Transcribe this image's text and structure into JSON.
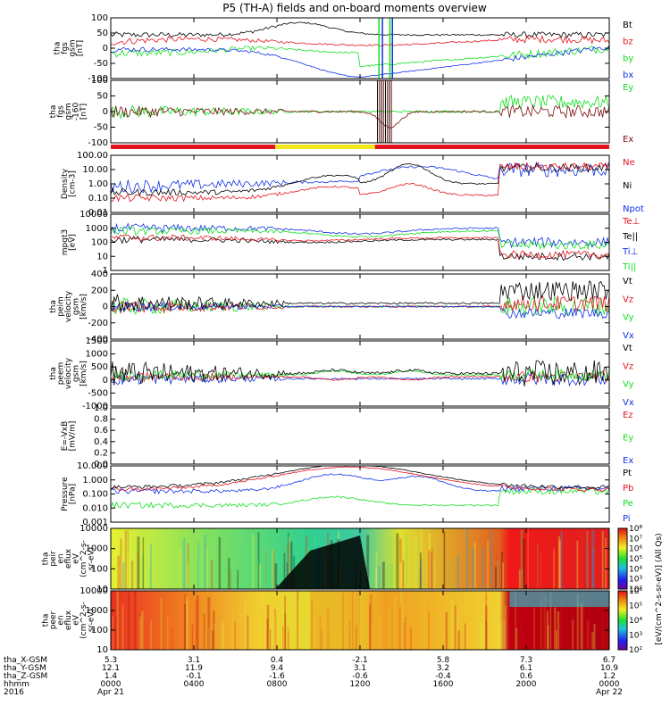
{
  "title": "P5 (TH-A) fields and on-board moments overview",
  "colors": {
    "black": "#000000",
    "red": "#e4141e",
    "green": "#10e01e",
    "blue": "#1030e6",
    "yellow": "#f2e81c",
    "brown": "#7a0f0f"
  },
  "chart_data": {
    "type": "line",
    "x_ticks": [
      "0000",
      "0400",
      "0800",
      "1200",
      "1600",
      "2000",
      "0000"
    ],
    "date_labels": [
      "Apr 21",
      "Apr 22"
    ],
    "year_label": "2016",
    "panels": [
      {
        "id": "fgs",
        "ylabel": [
          "tha",
          "fgs",
          "gsm",
          "[nT]"
        ],
        "ticks": [
          "100",
          "50",
          "0",
          "-50",
          "-100"
        ],
        "legend": [
          {
            "text": "Bt",
            "color": "black"
          },
          {
            "text": "bz",
            "color": "red"
          },
          {
            "text": "by",
            "color": "green"
          },
          {
            "text": "bx",
            "color": "blue"
          }
        ]
      },
      {
        "id": "efs",
        "ylabel": [
          "tha",
          "fgs",
          "gsm",
          "-160",
          "[nT]"
        ],
        "ticks": [
          "100",
          "50",
          "0",
          "-50",
          "-100"
        ],
        "legend": [
          {
            "text": "Ey",
            "color": "green"
          },
          {
            "text": "Ex",
            "color": "brown"
          }
        ]
      },
      {
        "id": "density",
        "ylabel": [
          "Density",
          "[cm-3]"
        ],
        "ticks": [
          "100.00",
          "10.00",
          "1.00",
          "0.10",
          "0.01"
        ],
        "legend": [
          {
            "text": "Ne",
            "color": "red"
          },
          {
            "text": "Ni",
            "color": "black"
          },
          {
            "text": "Npot",
            "color": "blue"
          }
        ]
      },
      {
        "id": "temp",
        "ylabel": [
          "mpgt3",
          "[eV]"
        ],
        "ticks": [
          "10000",
          "1000",
          "100",
          "10",
          "1"
        ],
        "legend": [
          {
            "text": "Te⊥",
            "color": "red"
          },
          {
            "text": "Te||",
            "color": "black"
          },
          {
            "text": "Ti⊥",
            "color": "blue"
          },
          {
            "text": "Ti||",
            "color": "green"
          }
        ]
      },
      {
        "id": "ivel",
        "ylabel": [
          "tha",
          "peim",
          "velocity",
          "gsm",
          "[km/s]"
        ],
        "ticks": [
          "400",
          "200",
          "0",
          "-200",
          "-400"
        ],
        "legend": [
          {
            "text": "Vt",
            "color": "black"
          },
          {
            "text": "Vz",
            "color": "red"
          },
          {
            "text": "Vy",
            "color": "green"
          },
          {
            "text": "Vx",
            "color": "blue"
          }
        ]
      },
      {
        "id": "evel",
        "ylabel": [
          "tha",
          "peem",
          "velocity",
          "gsm",
          "[km/s]"
        ],
        "ticks": [
          "1500",
          "1000",
          "500",
          "0",
          "-500",
          "-1000"
        ],
        "legend": [
          {
            "text": "Vt",
            "color": "black"
          },
          {
            "text": "Vz",
            "color": "red"
          },
          {
            "text": "Vy",
            "color": "green"
          },
          {
            "text": "Vx",
            "color": "blue"
          }
        ]
      },
      {
        "id": "efield",
        "ylabel": [
          "E=-VxB",
          "[mV/m]"
        ],
        "ticks": [
          "1.0",
          "0.8",
          "0.6",
          "0.4",
          "0.2",
          "0.0"
        ],
        "legend": [
          {
            "text": "Ez",
            "color": "red"
          },
          {
            "text": "Ey",
            "color": "green"
          },
          {
            "text": "Ex",
            "color": "blue"
          }
        ]
      },
      {
        "id": "pressure",
        "ylabel": [
          "Pressure",
          "[nPa]"
        ],
        "ticks": [
          "10.000",
          "1.000",
          "0.100",
          "0.010",
          "0.001"
        ],
        "legend": [
          {
            "text": "Pt",
            "color": "black"
          },
          {
            "text": "Pb",
            "color": "red"
          },
          {
            "text": "Pe",
            "color": "green"
          },
          {
            "text": "Pi",
            "color": "blue"
          }
        ]
      },
      {
        "id": "ispec",
        "ylabel": [
          "tha",
          "peir",
          "en",
          "eflux",
          "eV",
          "(cm^2-s-",
          "sr-eV)"
        ],
        "ticks": [
          "10000",
          "1000",
          "100",
          "10"
        ]
      },
      {
        "id": "espec",
        "ylabel": [
          "tha",
          "peer",
          "en",
          "eflux",
          "eV",
          "(cm^2-s-",
          "sr-eV)"
        ],
        "ticks": [
          "10000",
          "1000",
          "100",
          "10"
        ]
      }
    ],
    "colorbar": {
      "label": "[eV/(cm^2-s-sr-eV)]  (All Qs)",
      "ticks": [
        "10⁸",
        "10⁷",
        "10⁶",
        "10⁵",
        "10⁴",
        "10³",
        "10²"
      ],
      "lower_ticks": [
        "10⁶",
        "10⁵",
        "10⁴",
        "10³",
        "10²"
      ]
    },
    "orbit_rows": [
      {
        "label": "tha_X-GSM",
        "values": [
          "5.3",
          "3.1",
          "0.4",
          "-2.1",
          "5.8",
          "7.3",
          "6.7"
        ]
      },
      {
        "label": "tha_Y-GSM",
        "values": [
          "12.1",
          "11.9",
          "9.4",
          "3.1",
          "3.2",
          "6.1",
          "10.9"
        ]
      },
      {
        "label": "tha_Z-GSM",
        "values": [
          "1.4",
          "-0.1",
          "-1.6",
          "-0.6",
          "-0.4",
          "0.6",
          "1.2"
        ]
      },
      {
        "label": "hhmm",
        "values": [
          "0000",
          "0400",
          "0800",
          "1200",
          "1600",
          "2000",
          "0000"
        ]
      }
    ],
    "x_row_dates": [
      "2016",
      "Apr 21",
      "Apr 22"
    ]
  }
}
